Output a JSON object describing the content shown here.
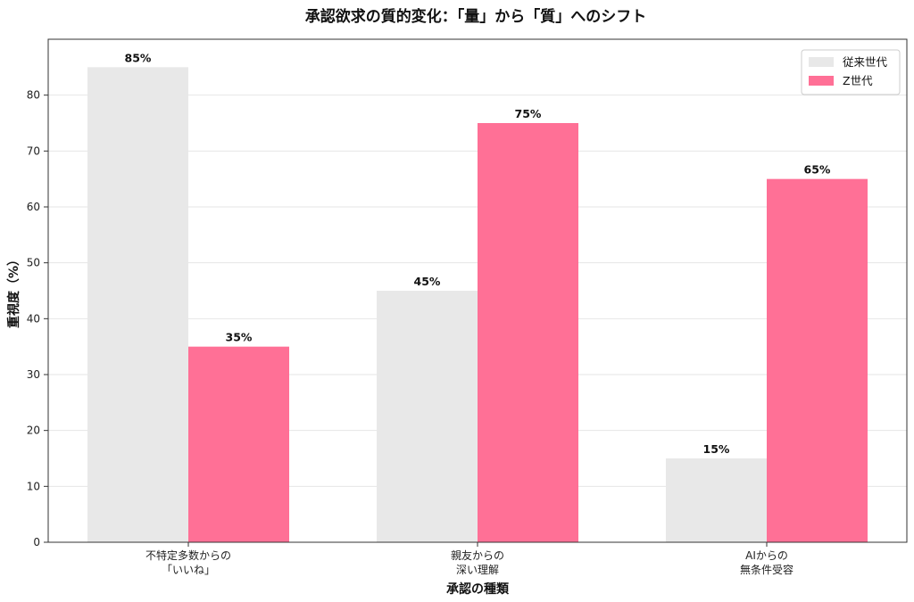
{
  "chart_data": {
    "type": "bar",
    "title": "承認欲求の質的変化：「量」から「質」へのシフト",
    "xlabel": "承認の種類",
    "ylabel": "重視度（%）",
    "categories": [
      [
        "不特定多数からの",
        "「いいね」"
      ],
      [
        "親友からの",
        "深い理解"
      ],
      [
        "AIからの",
        "無条件受容"
      ]
    ],
    "series": [
      {
        "name": "従来世代",
        "values": [
          85,
          45,
          15
        ],
        "labels": [
          "85%",
          "45%",
          "15%"
        ],
        "color": "#e8e8e8"
      },
      {
        "name": "Z世代",
        "values": [
          35,
          75,
          65
        ],
        "labels": [
          "35%",
          "75%",
          "65%"
        ],
        "color": "#ff7096"
      }
    ],
    "ylim": [
      0,
      90
    ],
    "yticks": [
      0,
      10,
      20,
      30,
      40,
      50,
      60,
      70,
      80
    ],
    "grid": true,
    "legend_position": "top-right"
  }
}
